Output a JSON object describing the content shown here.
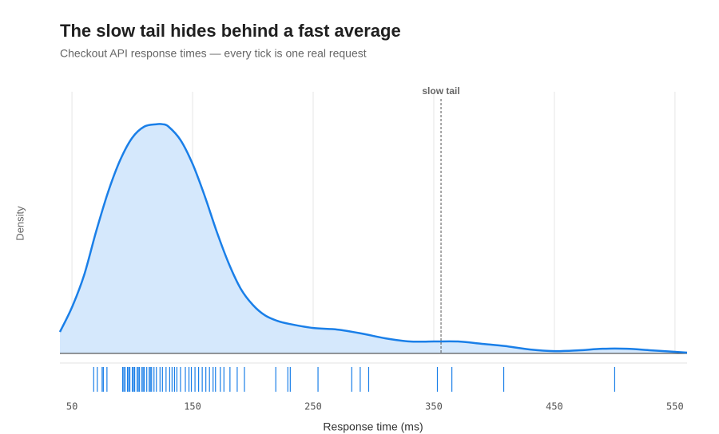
{
  "chart_data": {
    "type": "density",
    "title": "The slow tail hides behind a fast average",
    "subtitle": "Checkout API response times — every tick is one real request",
    "x_label": "Response time (ms)",
    "y_label": "Density",
    "x": [
      40,
      50,
      60,
      70,
      80,
      90,
      100,
      110,
      120,
      125,
      130,
      140,
      150,
      160,
      170,
      180,
      190,
      200,
      210,
      220,
      230,
      250,
      270,
      290,
      310,
      330,
      350,
      370,
      390,
      410,
      430,
      450,
      470,
      490,
      510,
      530,
      550,
      560
    ],
    "values": [
      0.00083,
      0.00178,
      0.00301,
      0.0047,
      0.00623,
      0.00746,
      0.00832,
      0.00875,
      0.00884,
      0.00884,
      0.00875,
      0.00823,
      0.00731,
      0.00608,
      0.0047,
      0.00347,
      0.00249,
      0.00187,
      0.00147,
      0.00126,
      0.00114,
      0.00098,
      0.00092,
      0.00077,
      0.00058,
      0.00046,
      0.00046,
      0.00046,
      0.00037,
      0.00028,
      0.00015,
      9e-05,
      0.00012,
      0.00018,
      0.00018,
      0.00012,
      6e-05,
      3e-05
    ],
    "color": "#1a7fe8",
    "fill": "#d5e8fc",
    "rug": [
      68,
      71,
      75,
      76,
      79,
      92,
      93,
      94,
      96,
      97,
      98,
      100,
      101,
      102,
      104,
      105,
      106,
      108,
      109,
      110,
      112,
      114,
      115,
      116,
      118,
      120,
      123,
      125,
      128,
      131,
      133,
      135,
      137,
      140,
      144,
      147,
      149,
      152,
      155,
      158,
      161,
      164,
      167,
      169,
      173,
      176,
      181,
      187,
      193,
      219,
      229,
      231,
      254,
      282,
      289,
      296,
      353,
      365,
      408,
      500
    ],
    "annotations": [
      {
        "x": 356,
        "label": "slow tail"
      }
    ],
    "xlim": [
      40,
      560
    ],
    "ylim": [
      0,
      0.01
    ],
    "xticks": [
      50,
      150,
      250,
      350,
      450,
      550
    ],
    "grid": true
  }
}
